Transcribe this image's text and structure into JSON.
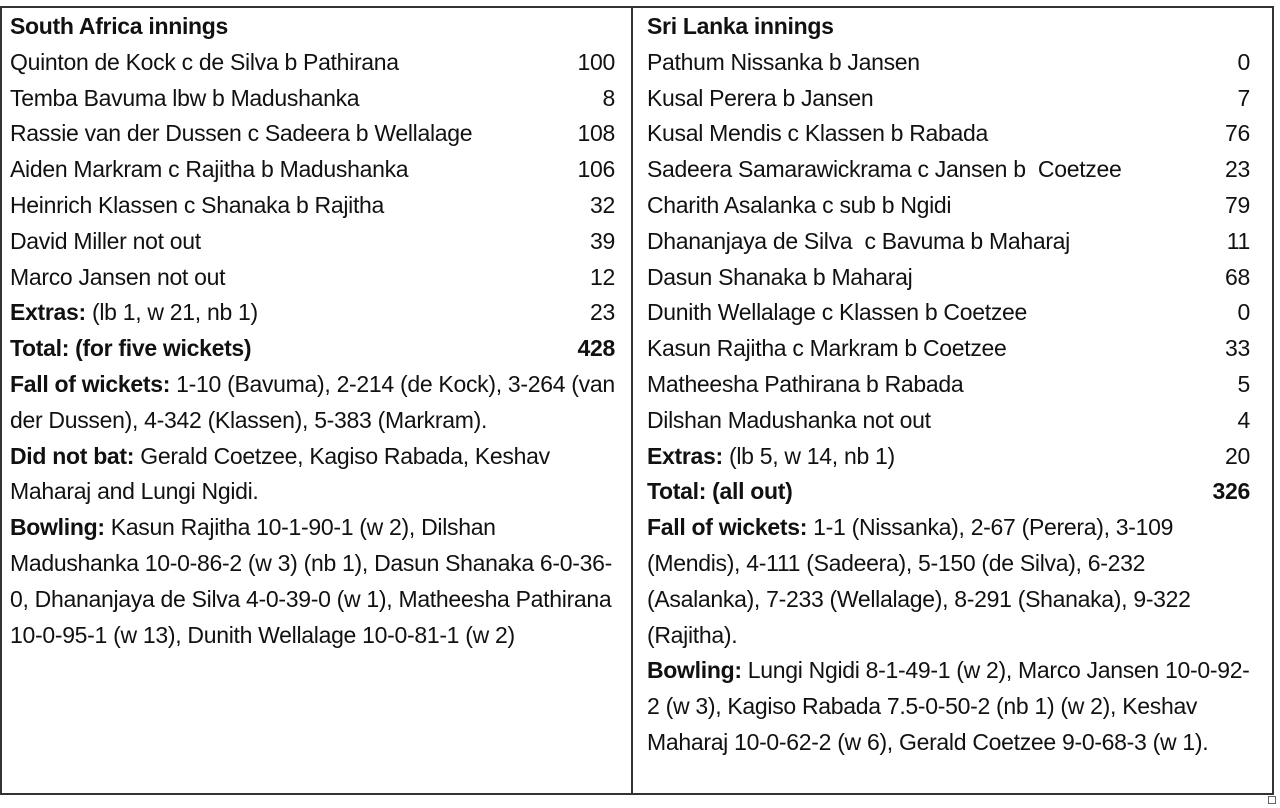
{
  "south_africa": {
    "title": "South Africa innings",
    "batting": [
      {
        "text": "Quinton de Kock c de Silva b Pathirana",
        "runs": "100"
      },
      {
        "text": "Temba Bavuma lbw b Madushanka",
        "runs": "8"
      },
      {
        "text": "Rassie van der Dussen c Sadeera b Wellalage",
        "runs": "108"
      },
      {
        "text": "Aiden Markram c Rajitha b Madushanka",
        "runs": "106"
      },
      {
        "text": "Heinrich Klassen c Shanaka b Rajitha",
        "runs": "32"
      },
      {
        "text": "David Miller not out",
        "runs": "39"
      },
      {
        "text": "Marco Jansen not out",
        "runs": "12"
      }
    ],
    "extras_label": "Extras:",
    "extras_text": " (lb 1, w 21, nb 1)",
    "extras_runs": "23",
    "total_label": "Total: (for five wickets)",
    "total_runs": "428",
    "fow_label": "Fall of wickets:",
    "fow_text": " 1-10 (Bavuma), 2-214 (de Kock), 3-264 (van der Dussen), 4-342 (Klassen), 5-383 (Markram).",
    "dnb_label": "Did not bat:",
    "dnb_text": " Gerald Coetzee, Kagiso Rabada, Keshav Maharaj and Lungi Ngidi.",
    "bowling_label": "Bowling:",
    "bowling_text": " Kasun Rajitha 10-1-90-1 (w 2), Dilshan Madushanka 10-0-86-2 (w 3) (nb 1), Dasun Shanaka 6-0-36-0, Dhananjaya de Silva 4-0-39-0 (w 1), Matheesha Pathirana 10-0-95-1 (w 13), Dunith Wellalage 10-0-81-1 (w 2)"
  },
  "sri_lanka": {
    "title": "Sri Lanka innings",
    "batting": [
      {
        "text": "Pathum Nissanka b Jansen",
        "runs": "0"
      },
      {
        "text": "Kusal Perera b Jansen",
        "runs": "7"
      },
      {
        "text": "Kusal Mendis c Klassen b Rabada",
        "runs": "76"
      },
      {
        "text": "Sadeera Samarawickrama c Jansen b  Coetzee",
        "runs": "23"
      },
      {
        "text": "Charith Asalanka c sub b Ngidi",
        "runs": "79"
      },
      {
        "text": "Dhananjaya de Silva  c Bavuma b Maharaj",
        "runs": "11"
      },
      {
        "text": "Dasun Shanaka b Maharaj",
        "runs": "68"
      },
      {
        "text": "Dunith Wellalage c Klassen b Coetzee",
        "runs": "0"
      },
      {
        "text": "Kasun Rajitha c Markram b Coetzee",
        "runs": "33"
      },
      {
        "text": "Matheesha Pathirana b Rabada",
        "runs": "5"
      },
      {
        "text": "Dilshan Madushanka not out",
        "runs": "4"
      }
    ],
    "extras_label": "Extras:",
    "extras_text": " (lb 5, w 14, nb 1)",
    "extras_runs": "20",
    "total_label": "Total: (all out)",
    "total_runs": "326",
    "fow_label": "Fall of wickets:",
    "fow_text": " 1-1 (Nissanka), 2-67 (Perera), 3-109 (Mendis), 4-111 (Sadeera), 5-150 (de Silva), 6-232 (Asalanka), 7-233 (Wellalage), 8-291 (Shanaka), 9-322 (Rajitha).",
    "bowling_label": "Bowling:",
    "bowling_text": " Lungi Ngidi 8-1-49-1 (w 2), Marco Jansen 10-0-92-2 (w 3), Kagiso Rabada 7.5-0-50-2 (nb 1) (w 2), Keshav Maharaj 10-0-62-2 (w 6), Gerald Coetzee 9-0-68-3 (w 1)."
  }
}
